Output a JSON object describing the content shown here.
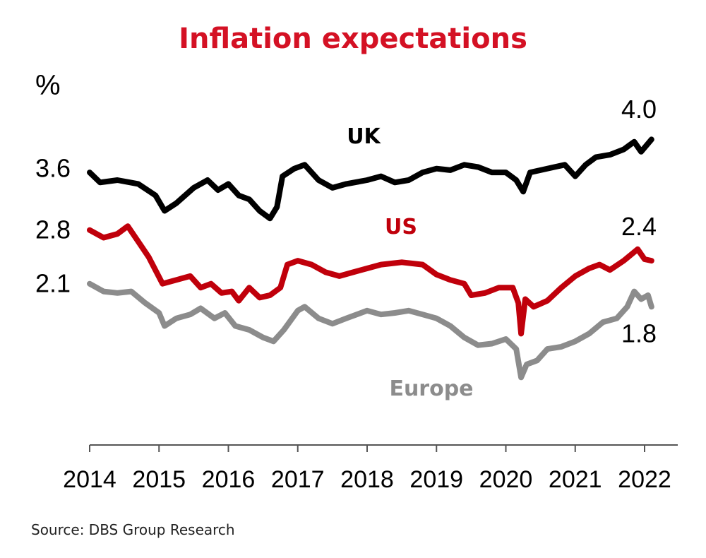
{
  "chart_data": {
    "type": "line",
    "title": "Inflation expectations",
    "ylabel": "%",
    "x_ticks": [
      "2014",
      "2015",
      "2016",
      "2017",
      "2018",
      "2019",
      "2020",
      "2021",
      "2022"
    ],
    "xlim": [
      2014.0,
      2022.5
    ],
    "ylim": [
      0.0,
      4.6
    ],
    "y_tick_labels": [
      {
        "value": 3.6,
        "label": "3.6"
      },
      {
        "value": 2.8,
        "label": "2.8"
      },
      {
        "value": 2.1,
        "label": "2.1"
      }
    ],
    "end_labels": [
      {
        "value": 4.0,
        "label": "4.0"
      },
      {
        "value": 2.4,
        "label": "2.4"
      },
      {
        "value": 1.8,
        "label": "1.8"
      }
    ],
    "series": [
      {
        "name": "UK",
        "color": "#000000",
        "points": [
          [
            2014.0,
            3.55
          ],
          [
            2014.15,
            3.42
          ],
          [
            2014.4,
            3.45
          ],
          [
            2014.7,
            3.4
          ],
          [
            2014.95,
            3.25
          ],
          [
            2015.08,
            3.05
          ],
          [
            2015.25,
            3.15
          ],
          [
            2015.5,
            3.35
          ],
          [
            2015.7,
            3.45
          ],
          [
            2015.85,
            3.32
          ],
          [
            2016.0,
            3.4
          ],
          [
            2016.15,
            3.25
          ],
          [
            2016.3,
            3.2
          ],
          [
            2016.45,
            3.05
          ],
          [
            2016.6,
            2.95
          ],
          [
            2016.7,
            3.1
          ],
          [
            2016.78,
            3.5
          ],
          [
            2016.95,
            3.6
          ],
          [
            2017.1,
            3.65
          ],
          [
            2017.3,
            3.45
          ],
          [
            2017.5,
            3.35
          ],
          [
            2017.7,
            3.4
          ],
          [
            2018.0,
            3.45
          ],
          [
            2018.2,
            3.5
          ],
          [
            2018.4,
            3.42
          ],
          [
            2018.6,
            3.45
          ],
          [
            2018.8,
            3.55
          ],
          [
            2019.0,
            3.6
          ],
          [
            2019.2,
            3.58
          ],
          [
            2019.4,
            3.65
          ],
          [
            2019.6,
            3.62
          ],
          [
            2019.8,
            3.55
          ],
          [
            2020.0,
            3.55
          ],
          [
            2020.15,
            3.45
          ],
          [
            2020.25,
            3.3
          ],
          [
            2020.35,
            3.55
          ],
          [
            2020.5,
            3.58
          ],
          [
            2020.7,
            3.62
          ],
          [
            2020.85,
            3.65
          ],
          [
            2021.0,
            3.5
          ],
          [
            2021.15,
            3.65
          ],
          [
            2021.3,
            3.75
          ],
          [
            2021.5,
            3.78
          ],
          [
            2021.7,
            3.85
          ],
          [
            2021.85,
            3.95
          ],
          [
            2021.95,
            3.82
          ],
          [
            2022.1,
            3.98
          ]
        ]
      },
      {
        "name": "US",
        "color": "#c0000b",
        "points": [
          [
            2014.0,
            2.8
          ],
          [
            2014.2,
            2.7
          ],
          [
            2014.4,
            2.75
          ],
          [
            2014.55,
            2.85
          ],
          [
            2014.7,
            2.65
          ],
          [
            2014.85,
            2.45
          ],
          [
            2015.05,
            2.1
          ],
          [
            2015.25,
            2.15
          ],
          [
            2015.45,
            2.2
          ],
          [
            2015.6,
            2.05
          ],
          [
            2015.75,
            2.1
          ],
          [
            2015.9,
            1.98
          ],
          [
            2016.05,
            2.0
          ],
          [
            2016.15,
            1.88
          ],
          [
            2016.3,
            2.05
          ],
          [
            2016.45,
            1.92
          ],
          [
            2016.6,
            1.95
          ],
          [
            2016.75,
            2.05
          ],
          [
            2016.85,
            2.35
          ],
          [
            2017.0,
            2.4
          ],
          [
            2017.2,
            2.35
          ],
          [
            2017.4,
            2.25
          ],
          [
            2017.6,
            2.2
          ],
          [
            2017.8,
            2.25
          ],
          [
            2018.0,
            2.3
          ],
          [
            2018.2,
            2.35
          ],
          [
            2018.5,
            2.38
          ],
          [
            2018.8,
            2.35
          ],
          [
            2019.0,
            2.22
          ],
          [
            2019.2,
            2.15
          ],
          [
            2019.4,
            2.1
          ],
          [
            2019.5,
            1.95
          ],
          [
            2019.7,
            1.98
          ],
          [
            2019.9,
            2.05
          ],
          [
            2020.1,
            2.05
          ],
          [
            2020.18,
            1.85
          ],
          [
            2020.22,
            1.45
          ],
          [
            2020.28,
            1.9
          ],
          [
            2020.4,
            1.8
          ],
          [
            2020.6,
            1.88
          ],
          [
            2020.8,
            2.05
          ],
          [
            2021.0,
            2.2
          ],
          [
            2021.2,
            2.3
          ],
          [
            2021.35,
            2.35
          ],
          [
            2021.5,
            2.28
          ],
          [
            2021.7,
            2.4
          ],
          [
            2021.9,
            2.55
          ],
          [
            2022.0,
            2.42
          ],
          [
            2022.1,
            2.4
          ]
        ]
      },
      {
        "name": "Europe",
        "color": "#8c8c8c",
        "points": [
          [
            2014.0,
            2.1
          ],
          [
            2014.2,
            2.0
          ],
          [
            2014.4,
            1.98
          ],
          [
            2014.6,
            2.0
          ],
          [
            2014.8,
            1.85
          ],
          [
            2015.0,
            1.72
          ],
          [
            2015.08,
            1.55
          ],
          [
            2015.25,
            1.65
          ],
          [
            2015.45,
            1.7
          ],
          [
            2015.6,
            1.78
          ],
          [
            2015.8,
            1.65
          ],
          [
            2015.95,
            1.72
          ],
          [
            2016.1,
            1.55
          ],
          [
            2016.3,
            1.5
          ],
          [
            2016.5,
            1.4
          ],
          [
            2016.65,
            1.35
          ],
          [
            2016.8,
            1.5
          ],
          [
            2017.0,
            1.75
          ],
          [
            2017.1,
            1.8
          ],
          [
            2017.3,
            1.65
          ],
          [
            2017.5,
            1.58
          ],
          [
            2017.7,
            1.65
          ],
          [
            2018.0,
            1.75
          ],
          [
            2018.2,
            1.7
          ],
          [
            2018.4,
            1.72
          ],
          [
            2018.6,
            1.75
          ],
          [
            2018.8,
            1.7
          ],
          [
            2019.0,
            1.65
          ],
          [
            2019.2,
            1.55
          ],
          [
            2019.4,
            1.4
          ],
          [
            2019.6,
            1.3
          ],
          [
            2019.8,
            1.32
          ],
          [
            2020.0,
            1.38
          ],
          [
            2020.15,
            1.25
          ],
          [
            2020.22,
            0.88
          ],
          [
            2020.3,
            1.05
          ],
          [
            2020.45,
            1.1
          ],
          [
            2020.6,
            1.25
          ],
          [
            2020.8,
            1.28
          ],
          [
            2021.0,
            1.35
          ],
          [
            2021.2,
            1.45
          ],
          [
            2021.4,
            1.6
          ],
          [
            2021.6,
            1.65
          ],
          [
            2021.75,
            1.8
          ],
          [
            2021.85,
            2.0
          ],
          [
            2021.95,
            1.9
          ],
          [
            2022.05,
            1.95
          ],
          [
            2022.1,
            1.8
          ]
        ]
      }
    ],
    "annotations": [
      {
        "text": "UK",
        "series": "UK"
      },
      {
        "text": "US",
        "series": "US"
      },
      {
        "text": "Europe",
        "series": "Europe"
      }
    ]
  },
  "footer": {
    "source": "Source: DBS Group Research"
  }
}
